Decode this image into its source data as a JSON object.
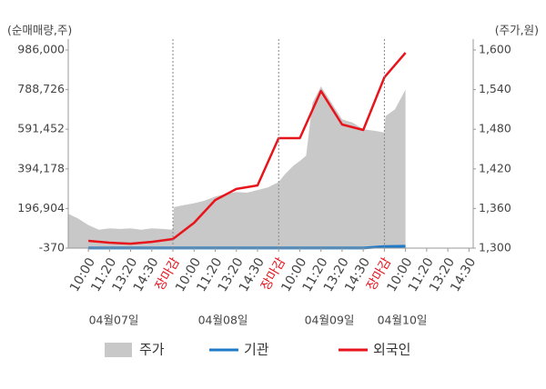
{
  "chart_data": {
    "type": "line",
    "y_label": "(순매매량,주)",
    "y2_label": "(주가,원)",
    "xlim": [
      -0.95,
      18.2
    ],
    "ylim": [
      -370,
      986000
    ],
    "y2lim": [
      1300,
      1600
    ],
    "yticks": [
      {
        "value": 986000,
        "label": "986,000"
      },
      {
        "value": 788726,
        "label": "788,726"
      },
      {
        "value": 591452,
        "label": "591,452"
      },
      {
        "value": 394178,
        "label": "394,178"
      },
      {
        "value": 196904,
        "label": "196,904"
      },
      -370
    ],
    "y2ticks": [
      {
        "value": 1600,
        "label": "1,600"
      },
      {
        "value": 1540,
        "label": "1,540"
      },
      {
        "value": 1480,
        "label": "1,480"
      },
      {
        "value": 1420,
        "label": "1,420"
      },
      {
        "value": 1360,
        "label": "1,360"
      },
      {
        "value": 1300,
        "label": "1,300"
      }
    ],
    "xticks": [
      {
        "value": 0,
        "label": "10:00"
      },
      {
        "value": 1,
        "label": "11:20"
      },
      {
        "value": 2,
        "label": "13:20"
      },
      {
        "value": 3,
        "label": "14:30"
      },
      {
        "value": 4,
        "label": "장마감",
        "color": "#e8141c"
      },
      {
        "value": 5,
        "label": "10:00"
      },
      {
        "value": 6,
        "label": "11:20"
      },
      {
        "value": 7,
        "label": "13:20"
      },
      {
        "value": 8,
        "label": "14:30"
      },
      {
        "value": 9,
        "label": "장마감",
        "color": "#e8141c"
      },
      {
        "value": 10,
        "label": "10:00"
      },
      {
        "value": 11,
        "label": "11:20"
      },
      {
        "value": 12,
        "label": "13:20"
      },
      {
        "value": 13,
        "label": "14:30"
      },
      {
        "value": 14,
        "label": "장마감",
        "color": "#e8141c"
      },
      {
        "value": 15,
        "label": "10:00"
      },
      {
        "value": 16,
        "label": "11:20"
      },
      {
        "value": 17,
        "label": "13:20"
      },
      {
        "value": 18,
        "label": "14:30"
      }
    ],
    "vlines": [
      4,
      9,
      14
    ],
    "dates": [
      "04월07일",
      "04월08일",
      "04월09일",
      "04월10일"
    ],
    "series": [
      {
        "name": "주가",
        "type": "area",
        "axis": "y2",
        "color": "#c8c8c8",
        "x": [
          -0.95,
          -0.5,
          0,
          0.5,
          1,
          1.5,
          2,
          2.5,
          3,
          3.5,
          4,
          4.05,
          4.5,
          5,
          5.5,
          6,
          6.5,
          7,
          7.5,
          8,
          8.5,
          9,
          9.3,
          9.7,
          10,
          10.3,
          10.6,
          11,
          11.5,
          12,
          12.5,
          13,
          13.5,
          14,
          14.05,
          14.5,
          15
        ],
        "values": [
          1352,
          1345,
          1335,
          1328,
          1330,
          1329,
          1330,
          1328,
          1330,
          1329,
          1328,
          1362,
          1365,
          1368,
          1372,
          1378,
          1382,
          1385,
          1384,
          1388,
          1392,
          1400,
          1412,
          1425,
          1432,
          1440,
          1520,
          1545,
          1520,
          1495,
          1490,
          1480,
          1478,
          1475,
          1500,
          1510,
          1540
        ]
      },
      {
        "name": "기관",
        "type": "line",
        "color": "#1f7bc7",
        "x": [
          0,
          1,
          2,
          3,
          4,
          5,
          6,
          7,
          8,
          9,
          10,
          11,
          12,
          13,
          14,
          15
        ],
        "values": [
          0,
          0,
          0,
          0,
          0,
          0,
          0,
          0,
          0,
          0,
          0,
          0,
          0,
          0,
          8000,
          9000
        ]
      },
      {
        "name": "외국인",
        "type": "line",
        "color": "#e8141c",
        "x": [
          0,
          1,
          2,
          3,
          4,
          5,
          6,
          7,
          8,
          9,
          10,
          11,
          12,
          13,
          14,
          15
        ],
        "values": [
          36000,
          27000,
          22000,
          31000,
          45000,
          126000,
          239000,
          294000,
          312000,
          547000,
          547000,
          782000,
          615000,
          588000,
          850000,
          972000
        ]
      }
    ]
  }
}
